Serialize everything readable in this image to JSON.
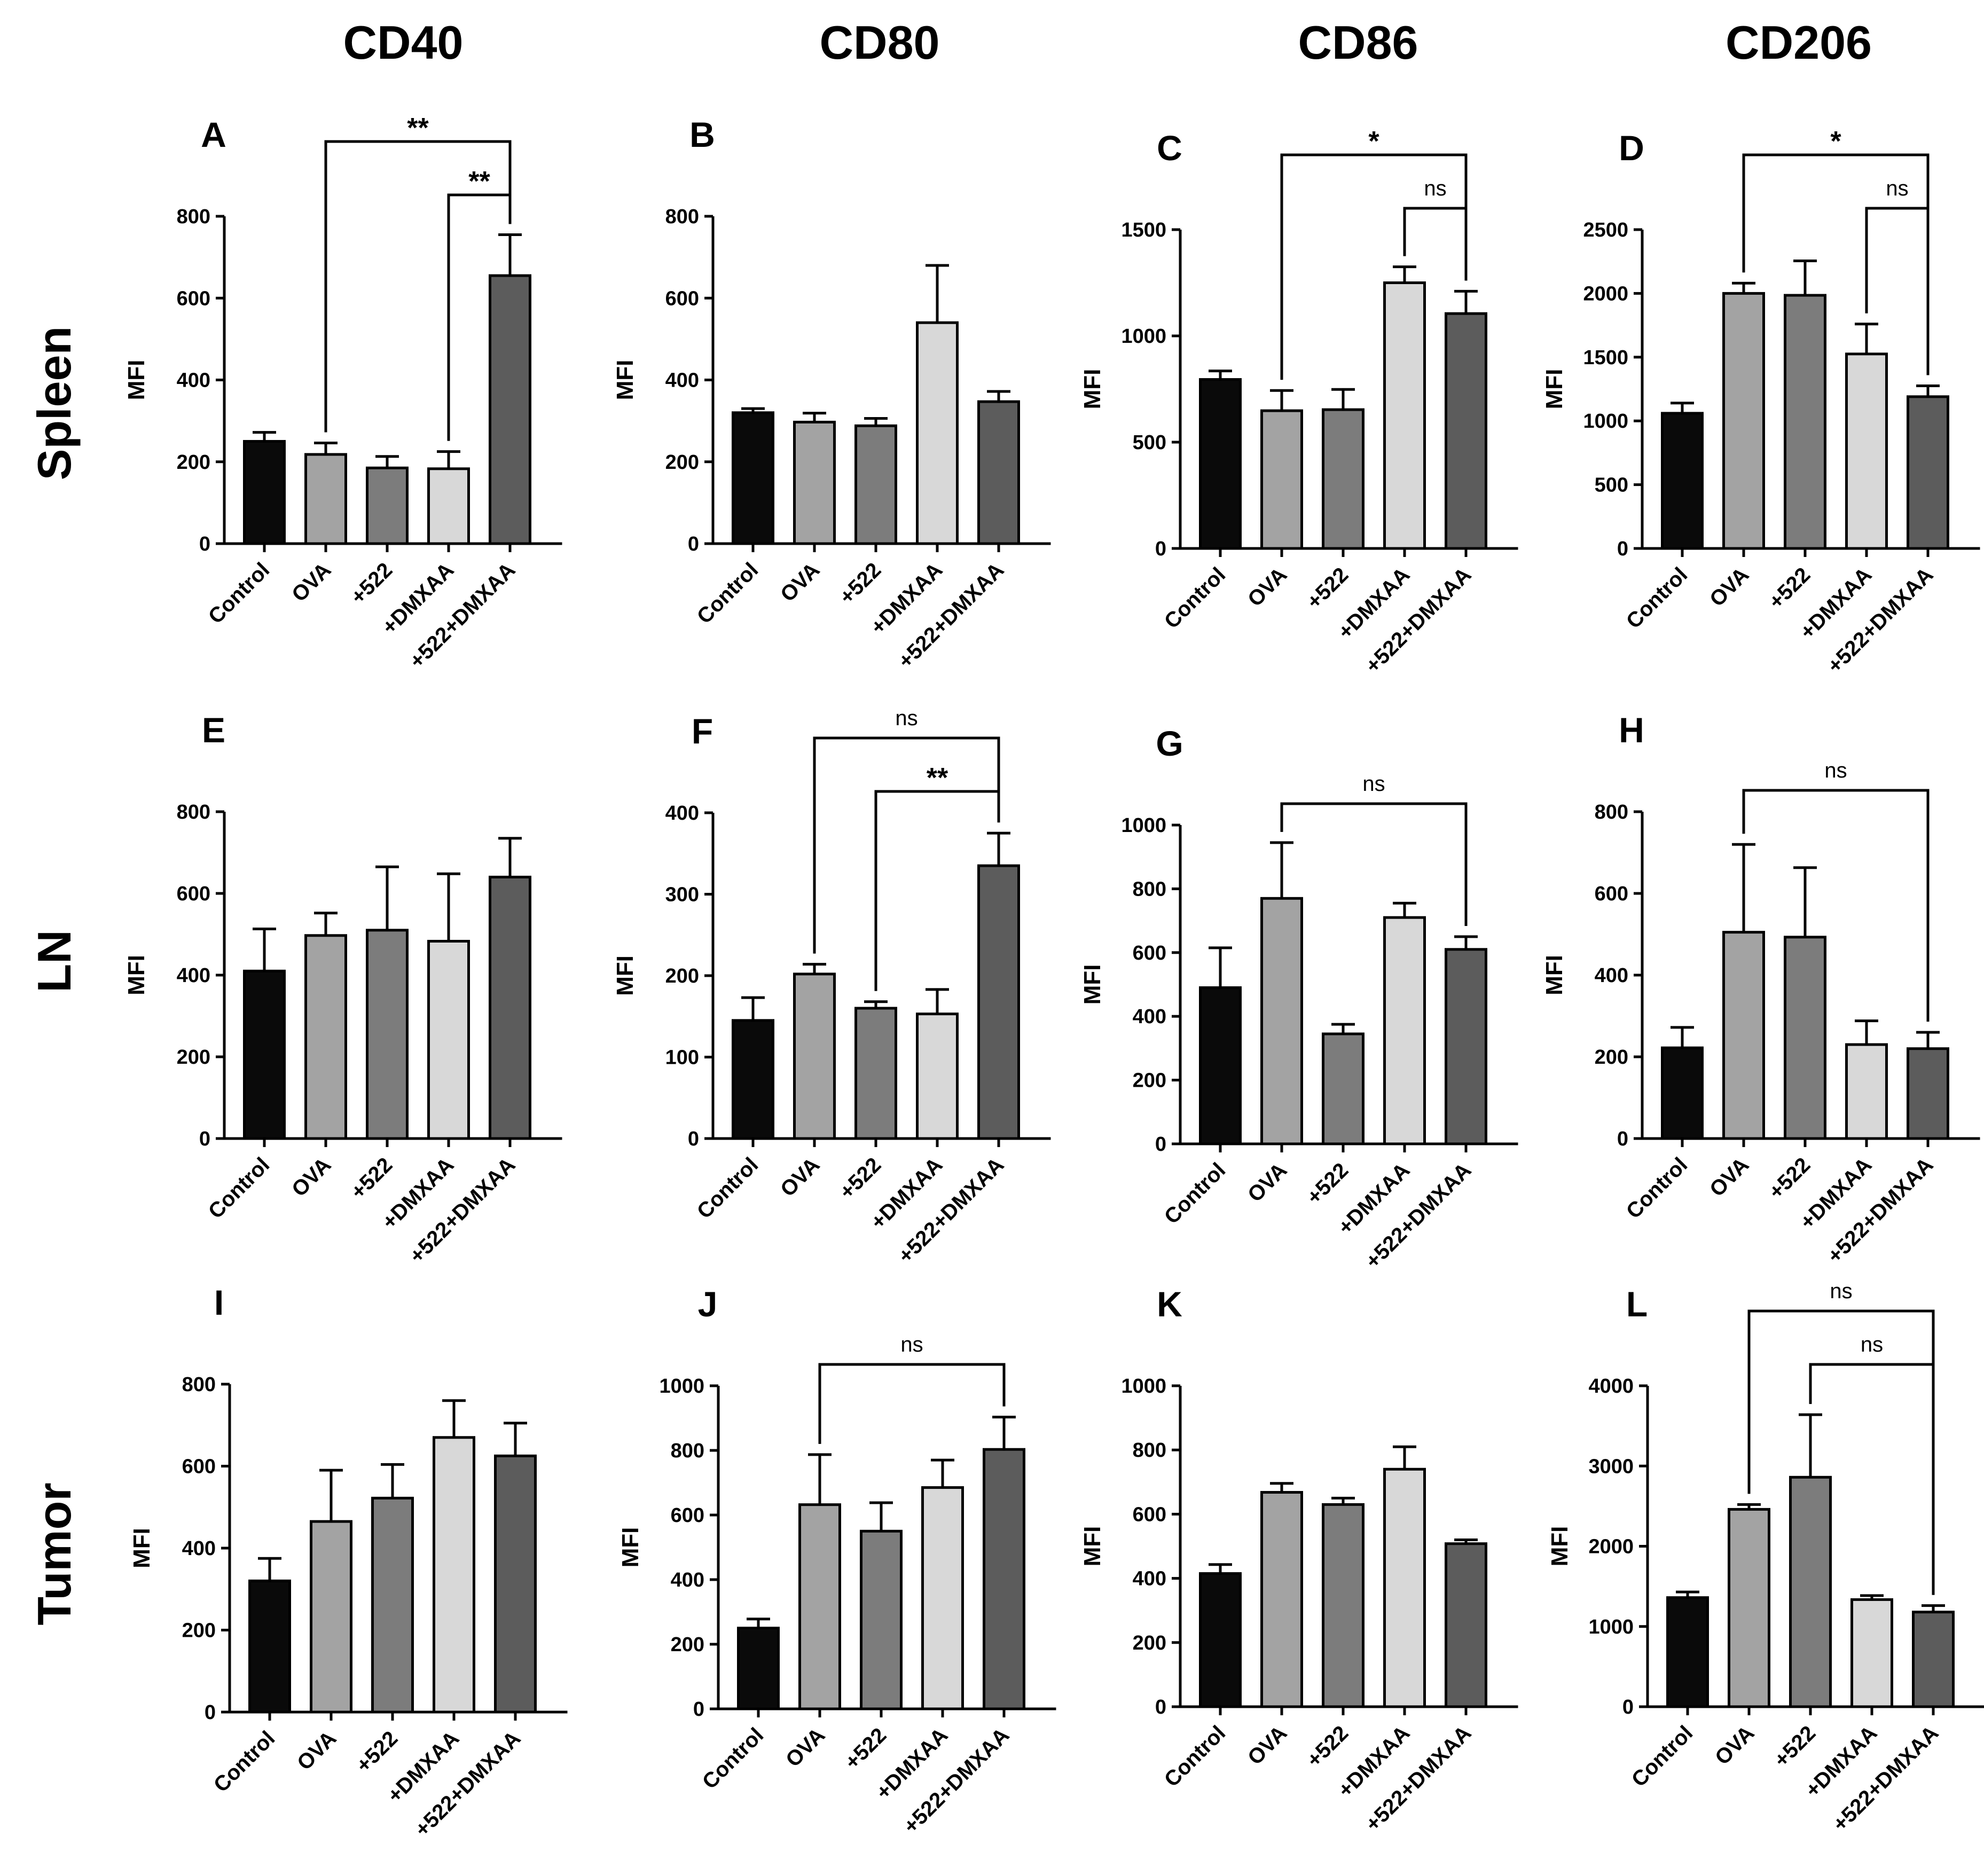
{
  "columns": [
    "CD40",
    "CD80",
    "CD86",
    "CD206"
  ],
  "rows": [
    "Spleen",
    "LN",
    "Tumor"
  ],
  "colors": {
    "Control": "#0a0a0a",
    "OVA": "#a3a3a3",
    "+522": "#7c7c7c",
    "+DMXAA": "#d8d8d8",
    "+522+DMXAA": "#5c5c5c",
    "stroke": "#000000"
  },
  "chart_data": [
    {
      "panel": "A",
      "type": "bar",
      "ylabel": "MFI",
      "ylim": [
        0,
        800
      ],
      "yticks": [
        0,
        200,
        400,
        600,
        800
      ],
      "categories": [
        "Control",
        "OVA",
        "+522",
        "+DMXAA",
        "+522+DMXAA"
      ],
      "values": [
        250,
        218,
        185,
        183,
        655
      ],
      "errors": [
        22,
        28,
        28,
        42,
        100
      ],
      "annotations": [
        {
          "from": 1,
          "to": 4,
          "label": "**",
          "level": 1
        },
        {
          "from": 3,
          "to": 4,
          "label": "**",
          "level": 0
        }
      ]
    },
    {
      "panel": "B",
      "type": "bar",
      "ylabel": "MFI",
      "ylim": [
        0,
        800
      ],
      "yticks": [
        0,
        200,
        400,
        600,
        800
      ],
      "categories": [
        "Control",
        "OVA",
        "+522",
        "+DMXAA",
        "+522+DMXAA"
      ],
      "values": [
        320,
        297,
        288,
        540,
        347
      ],
      "errors": [
        10,
        22,
        18,
        140,
        25
      ],
      "annotations": []
    },
    {
      "panel": "C",
      "type": "bar",
      "ylabel": "MFI",
      "ylim": [
        0,
        1500
      ],
      "yticks": [
        0,
        500,
        1000,
        1500
      ],
      "categories": [
        "Control",
        "OVA",
        "+522",
        "+DMXAA",
        "+522+DMXAA"
      ],
      "values": [
        795,
        648,
        653,
        1250,
        1105
      ],
      "errors": [
        40,
        95,
        95,
        75,
        105
      ],
      "annotations": [
        {
          "from": 1,
          "to": 4,
          "label": "*",
          "level": 1
        },
        {
          "from": 3,
          "to": 4,
          "label": "ns",
          "level": 0
        }
      ]
    },
    {
      "panel": "D",
      "type": "bar",
      "ylabel": "MFI",
      "ylim": [
        0,
        2500
      ],
      "yticks": [
        0,
        500,
        1000,
        1500,
        2000,
        2500
      ],
      "categories": [
        "Control",
        "OVA",
        "+522",
        "+DMXAA",
        "+522+DMXAA"
      ],
      "values": [
        1060,
        2000,
        1985,
        1525,
        1190
      ],
      "errors": [
        80,
        80,
        270,
        235,
        85
      ],
      "annotations": [
        {
          "from": 1,
          "to": 4,
          "label": "*",
          "level": 1
        },
        {
          "from": 3,
          "to": 4,
          "label": "ns",
          "level": 0
        }
      ]
    },
    {
      "panel": "E",
      "type": "bar",
      "ylabel": "MFI",
      "ylim": [
        0,
        800
      ],
      "yticks": [
        0,
        200,
        400,
        600,
        800
      ],
      "categories": [
        "Control",
        "OVA",
        "+522",
        "+DMXAA",
        "+522+DMXAA"
      ],
      "values": [
        410,
        497,
        510,
        483,
        640
      ],
      "errors": [
        103,
        55,
        155,
        165,
        95
      ],
      "annotations": []
    },
    {
      "panel": "F",
      "type": "bar",
      "ylabel": "MFI",
      "ylim": [
        0,
        400
      ],
      "yticks": [
        0,
        100,
        200,
        300,
        400
      ],
      "categories": [
        "Control",
        "OVA",
        "+522",
        "+DMXAA",
        "+522+DMXAA"
      ],
      "values": [
        145,
        202,
        160,
        153,
        335
      ],
      "errors": [
        28,
        12,
        8,
        30,
        40
      ],
      "annotations": [
        {
          "from": 1,
          "to": 4,
          "label": "ns",
          "level": 1
        },
        {
          "from": 2,
          "to": 4,
          "label": "**",
          "level": 0
        }
      ]
    },
    {
      "panel": "G",
      "type": "bar",
      "ylabel": "MFI",
      "ylim": [
        0,
        1000
      ],
      "yticks": [
        0,
        200,
        400,
        600,
        800,
        1000
      ],
      "categories": [
        "Control",
        "OVA",
        "+522",
        "+DMXAA",
        "+522+DMXAA"
      ],
      "values": [
        490,
        770,
        345,
        710,
        610
      ],
      "errors": [
        125,
        175,
        30,
        45,
        40
      ],
      "annotations": [
        {
          "from": 1,
          "to": 4,
          "label": "ns",
          "level": 0
        }
      ]
    },
    {
      "panel": "H",
      "type": "bar",
      "ylabel": "MFI",
      "ylim": [
        0,
        800
      ],
      "yticks": [
        0,
        200,
        400,
        600,
        800
      ],
      "categories": [
        "Control",
        "OVA",
        "+522",
        "+DMXAA",
        "+522+DMXAA"
      ],
      "values": [
        222,
        505,
        493,
        230,
        220
      ],
      "errors": [
        50,
        215,
        170,
        58,
        40
      ],
      "annotations": [
        {
          "from": 1,
          "to": 4,
          "label": "ns",
          "level": 0
        }
      ]
    },
    {
      "panel": "I",
      "type": "bar",
      "ylabel": "MFI",
      "ylim": [
        0,
        800
      ],
      "yticks": [
        0,
        200,
        400,
        600,
        800
      ],
      "categories": [
        "Control",
        "OVA",
        "+522",
        "+DMXAA",
        "+522+DMXAA"
      ],
      "values": [
        320,
        465,
        522,
        670,
        625
      ],
      "errors": [
        55,
        125,
        82,
        90,
        80
      ],
      "annotations": []
    },
    {
      "panel": "J",
      "type": "bar",
      "ylabel": "MFI",
      "ylim": [
        0,
        1000
      ],
      "yticks": [
        0,
        200,
        400,
        600,
        800,
        1000
      ],
      "categories": [
        "Control",
        "OVA",
        "+522",
        "+DMXAA",
        "+522+DMXAA"
      ],
      "values": [
        250,
        632,
        550,
        685,
        803
      ],
      "errors": [
        28,
        155,
        88,
        85,
        100
      ],
      "annotations": [
        {
          "from": 1,
          "to": 4,
          "label": "ns",
          "level": 0
        }
      ]
    },
    {
      "panel": "K",
      "type": "bar",
      "ylabel": "MFI",
      "ylim": [
        0,
        1000
      ],
      "yticks": [
        0,
        200,
        400,
        600,
        800,
        1000
      ],
      "categories": [
        "Control",
        "OVA",
        "+522",
        "+DMXAA",
        "+522+DMXAA"
      ],
      "values": [
        415,
        668,
        630,
        740,
        508
      ],
      "errors": [
        28,
        28,
        20,
        70,
        12
      ],
      "annotations": []
    },
    {
      "panel": "L",
      "type": "bar",
      "ylabel": "MFI",
      "ylim": [
        0,
        4000
      ],
      "yticks": [
        0,
        1000,
        2000,
        3000,
        4000
      ],
      "categories": [
        "Control",
        "OVA",
        "+522",
        "+DMXAA",
        "+522+DMXAA"
      ],
      "values": [
        1360,
        2460,
        2860,
        1335,
        1180
      ],
      "errors": [
        70,
        60,
        780,
        50,
        80
      ],
      "annotations": [
        {
          "from": 1,
          "to": 4,
          "label": "ns",
          "level": 1
        },
        {
          "from": 2,
          "to": 4,
          "label": "ns",
          "level": 0
        }
      ]
    }
  ]
}
